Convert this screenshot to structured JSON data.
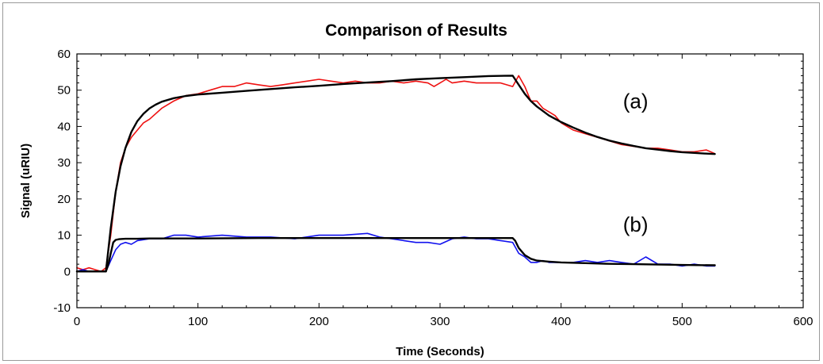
{
  "chart_data": {
    "type": "line",
    "title": "Comparison of Results",
    "xlabel": "Time (Seconds)",
    "ylabel": "Signal (uRIU)",
    "xlim": [
      0,
      600
    ],
    "ylim": [
      -10,
      60
    ],
    "xticks": [
      0,
      100,
      200,
      300,
      400,
      500,
      600
    ],
    "yticks": [
      -10,
      0,
      10,
      20,
      30,
      40,
      50,
      60
    ],
    "grid": false,
    "annotations": [
      {
        "text": "(a)",
        "x": 440,
        "y": 47
      },
      {
        "text": "(b)",
        "x": 440,
        "y": 13
      }
    ],
    "series": [
      {
        "color": "#ee1111",
        "x": [
          0,
          5,
          10,
          15,
          20,
          24,
          28,
          32,
          36,
          40,
          45,
          50,
          55,
          60,
          70,
          80,
          90,
          100,
          110,
          120,
          130,
          140,
          150,
          160,
          170,
          180,
          190,
          200,
          210,
          220,
          230,
          240,
          250,
          260,
          270,
          280,
          290,
          295,
          300,
          305,
          310,
          320,
          330,
          340,
          350,
          360,
          365,
          370,
          375,
          380,
          385,
          390,
          395,
          400,
          410,
          420,
          430,
          440,
          450,
          460,
          470,
          480,
          490,
          500,
          510,
          520,
          527
        ],
        "values": [
          1,
          0.5,
          1,
          0.5,
          0,
          1,
          10,
          22,
          30,
          34,
          37,
          39,
          41,
          42,
          45,
          47,
          48.5,
          49,
          50,
          51,
          51,
          52,
          51.5,
          51,
          51.5,
          52,
          52.5,
          53,
          52.5,
          52,
          52.5,
          52,
          52,
          52.5,
          52,
          52.5,
          52,
          51,
          52,
          53,
          52,
          52.5,
          52,
          52,
          52,
          51,
          54,
          51,
          47,
          47,
          45,
          44,
          43,
          41,
          39,
          38,
          37,
          36,
          35,
          34.5,
          34,
          34,
          33.5,
          33,
          33,
          33.5,
          32.5
        ]
      },
      {
        "color": "#1111ee",
        "x": [
          0,
          5,
          10,
          15,
          20,
          24,
          28,
          32,
          36,
          40,
          45,
          50,
          60,
          70,
          80,
          90,
          100,
          120,
          140,
          160,
          180,
          200,
          220,
          240,
          250,
          260,
          270,
          280,
          290,
          300,
          310,
          320,
          330,
          340,
          350,
          360,
          365,
          370,
          375,
          380,
          385,
          390,
          400,
          410,
          420,
          430,
          440,
          450,
          460,
          470,
          480,
          490,
          500,
          510,
          520,
          527
        ],
        "values": [
          0,
          0.5,
          0,
          0,
          0,
          0,
          3,
          6,
          7.5,
          8,
          7.5,
          8.5,
          9,
          9,
          10,
          10,
          9.5,
          10,
          9.5,
          9.5,
          9,
          10,
          10,
          10.5,
          9.5,
          9,
          8.5,
          8,
          8,
          7.5,
          9,
          9.5,
          9,
          9,
          8.5,
          8,
          5,
          4,
          2.5,
          2.5,
          3,
          2.5,
          2.5,
          2.5,
          3,
          2.5,
          3,
          2.5,
          2,
          4,
          2,
          2,
          1.5,
          2,
          1.5,
          1.5
        ]
      },
      {
        "color": "#000000",
        "x": [
          0,
          10,
          20,
          24,
          28,
          32,
          36,
          40,
          45,
          50,
          55,
          60,
          65,
          70,
          80,
          90,
          100,
          120,
          140,
          160,
          180,
          200,
          220,
          240,
          260,
          280,
          300,
          320,
          340,
          360,
          365,
          370,
          375,
          380,
          390,
          400,
          410,
          420,
          430,
          440,
          450,
          460,
          470,
          480,
          490,
          500,
          510,
          520,
          527
        ],
        "values": [
          0,
          0,
          0,
          0,
          12,
          22,
          29,
          34,
          38.5,
          41.5,
          43.5,
          45,
          46,
          46.8,
          47.8,
          48.4,
          48.8,
          49.3,
          49.8,
          50.3,
          50.8,
          51.2,
          51.7,
          52.1,
          52.5,
          53,
          53.3,
          53.6,
          53.9,
          54,
          51.5,
          49,
          47,
          45.5,
          43,
          41.2,
          39.7,
          38.3,
          37.1,
          36.1,
          35.3,
          34.6,
          34,
          33.6,
          33.2,
          32.9,
          32.7,
          32.5,
          32.4
        ]
      },
      {
        "color": "#000000",
        "x": [
          0,
          10,
          20,
          24,
          26,
          28,
          30,
          32,
          35,
          40,
          50,
          60,
          80,
          100,
          150,
          200,
          250,
          300,
          340,
          360,
          362,
          365,
          370,
          375,
          380,
          390,
          400,
          420,
          440,
          460,
          480,
          500,
          527
        ],
        "values": [
          0,
          0,
          0,
          0,
          2,
          5,
          8,
          8.7,
          8.9,
          9,
          9,
          9.1,
          9.1,
          9.1,
          9.2,
          9.2,
          9.2,
          9.2,
          9.2,
          9.2,
          8.5,
          6.5,
          4.5,
          3.5,
          3,
          2.7,
          2.5,
          2.3,
          2.1,
          2,
          1.9,
          1.8,
          1.7
        ]
      }
    ]
  }
}
